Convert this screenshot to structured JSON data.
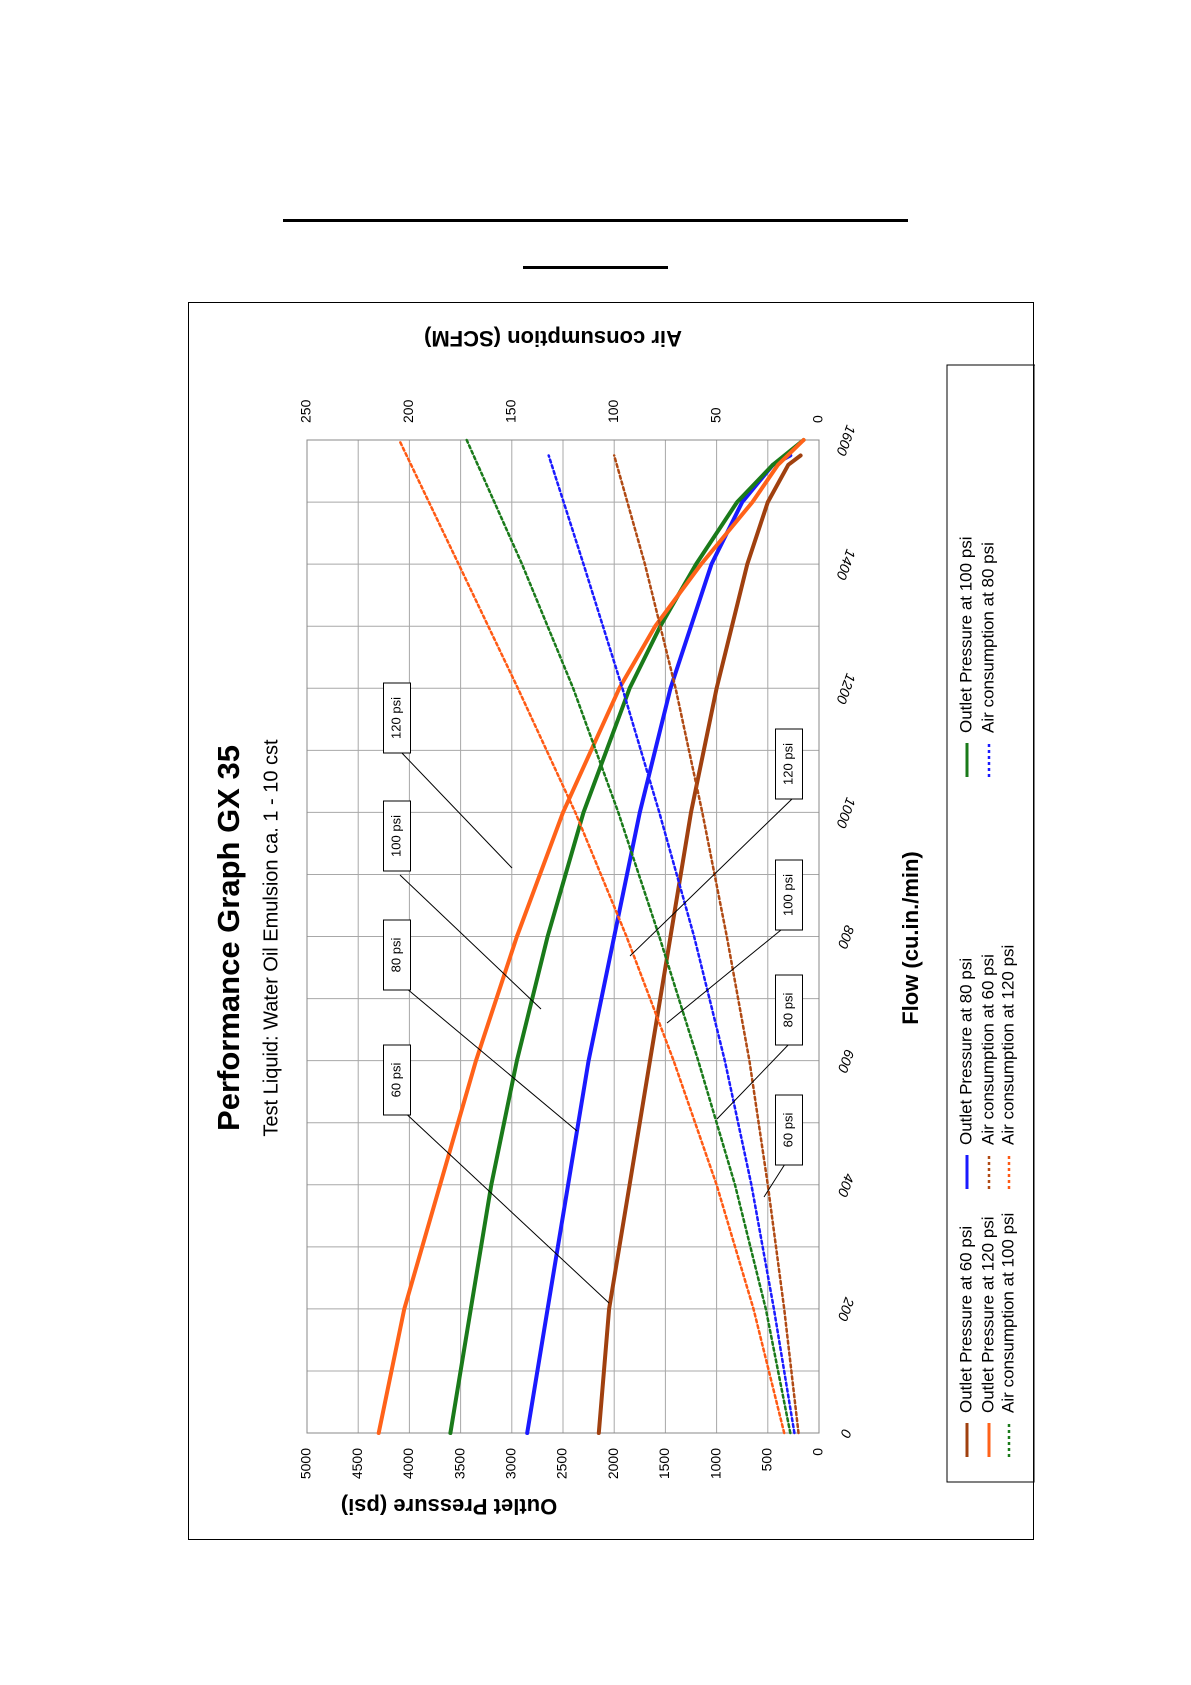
{
  "chart_data": {
    "type": "line",
    "title": "Performance Graph GX 35",
    "subtitle": "Test Liquid: Water Oil Emulsion ca. 1 - 10 cst",
    "xlabel": "Flow (cu.in./min)",
    "ylabel": "Outlet Pressure (psi)",
    "y2label": "Air consumption (SCFM)",
    "orientation": "rotated 90 degrees counter-clockwise",
    "xlim": [
      0,
      1600
    ],
    "ylim": [
      0,
      5000
    ],
    "y2lim": [
      0,
      250
    ],
    "x_ticks": [
      "0",
      "200",
      "400",
      "600",
      "800",
      "1000",
      "1200",
      "1400",
      "1600"
    ],
    "y_ticks": [
      "0",
      "500",
      "1000",
      "1500",
      "2000",
      "2500",
      "3000",
      "3500",
      "4000",
      "4500",
      "5000"
    ],
    "y2_ticks": [
      "0",
      "50",
      "100",
      "150",
      "200",
      "250"
    ],
    "grid": true,
    "legend_position": "bottom",
    "series": [
      {
        "name": "Outlet Pressure at 60 psi",
        "axis": "left",
        "style": "solid",
        "color": "#a0400f",
        "x": [
          0,
          200,
          400,
          600,
          800,
          1000,
          1200,
          1400,
          1500,
          1560,
          1575
        ],
        "y": [
          2150,
          2050,
          1850,
          1650,
          1450,
          1250,
          1000,
          700,
          500,
          300,
          180
        ]
      },
      {
        "name": "Outlet Pressure at 80 psi",
        "axis": "left",
        "style": "solid",
        "color": "#1a1aff",
        "x": [
          0,
          200,
          400,
          600,
          800,
          1000,
          1200,
          1300,
          1400,
          1500,
          1560,
          1575
        ],
        "y": [
          2850,
          2650,
          2450,
          2250,
          2000,
          1750,
          1450,
          1250,
          1050,
          750,
          450,
          280
        ]
      },
      {
        "name": "Outlet Pressure at 100 psi",
        "axis": "left",
        "style": "solid",
        "color": "#1a7a1a",
        "x": [
          0,
          200,
          400,
          600,
          800,
          1000,
          1200,
          1300,
          1400,
          1500,
          1560,
          1600
        ],
        "y": [
          3600,
          3400,
          3200,
          2950,
          2650,
          2300,
          1850,
          1550,
          1200,
          800,
          450,
          150
        ]
      },
      {
        "name": "Outlet Pressure at 120 psi",
        "axis": "left",
        "style": "solid",
        "color": "#ff6219",
        "x": [
          0,
          200,
          400,
          600,
          800,
          1000,
          1200,
          1300,
          1400,
          1450,
          1500,
          1560,
          1600
        ],
        "y": [
          4300,
          4050,
          3700,
          3350,
          2950,
          2500,
          1950,
          1600,
          1150,
          900,
          650,
          400,
          150
        ]
      },
      {
        "name": "Air consumption at 60 psi",
        "axis": "right",
        "style": "dotted",
        "color": "#b04a14",
        "x": [
          0,
          200,
          400,
          600,
          800,
          1000,
          1200,
          1400,
          1575
        ],
        "y": [
          10,
          17,
          25,
          34,
          45,
          57,
          70,
          85,
          100
        ]
      },
      {
        "name": "Air consumption at 80 psi",
        "axis": "right",
        "style": "dotted",
        "color": "#1a1aff",
        "x": [
          0,
          200,
          400,
          600,
          800,
          1000,
          1200,
          1400,
          1575
        ],
        "y": [
          12,
          22,
          33,
          46,
          61,
          78,
          96,
          115,
          132
        ]
      },
      {
        "name": "Air consumption at 100 psi",
        "axis": "right",
        "style": "dotted",
        "color": "#1a7a1a",
        "x": [
          0,
          200,
          400,
          600,
          800,
          1000,
          1200,
          1400,
          1600
        ],
        "y": [
          14,
          26,
          41,
          59,
          78,
          98,
          120,
          145,
          172
        ]
      },
      {
        "name": "Air consumption at 120 psi",
        "axis": "right",
        "style": "dotted",
        "color": "#ff5a14",
        "x": [
          0,
          200,
          400,
          600,
          800,
          1000,
          1200,
          1400,
          1600
        ],
        "y": [
          17,
          32,
          50,
          71,
          94,
          119,
          147,
          176,
          205
        ]
      }
    ],
    "annotations": [
      {
        "text": "60 psi",
        "target": "pressure"
      },
      {
        "text": "80 psi",
        "target": "pressure"
      },
      {
        "text": "100 psi",
        "target": "pressure"
      },
      {
        "text": "120 psi",
        "target": "pressure"
      },
      {
        "text": "60 psi",
        "target": "air"
      },
      {
        "text": "80 psi",
        "target": "air"
      },
      {
        "text": "100 psi",
        "target": "air"
      },
      {
        "text": "120 psi",
        "target": "air"
      }
    ],
    "legend": [
      "Outlet Pressure at 60 psi",
      "Outlet Pressure at 120 psi",
      "Air consumption at 100 psi",
      "Outlet Pressure at 80 psi",
      "Air consumption at 60 psi",
      "Air consumption at 120 psi",
      "Outlet Pressure at 100 psi",
      "Air consumption at 80 psi"
    ]
  }
}
